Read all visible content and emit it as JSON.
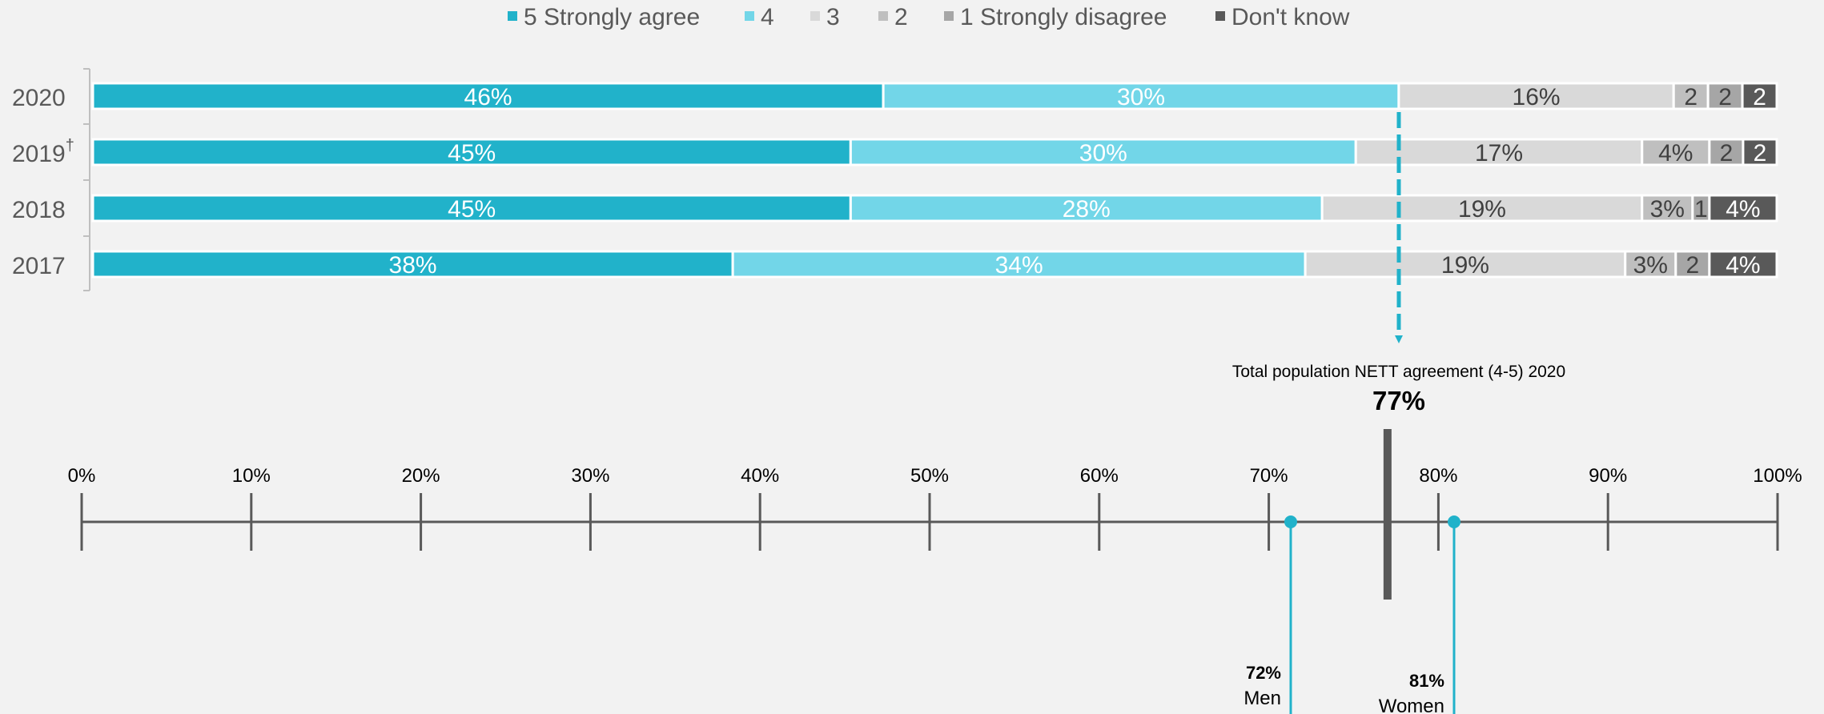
{
  "chart_data": [
    {
      "type": "bar",
      "orientation": "horizontal",
      "stacked": true,
      "title": "",
      "legend_position": "top",
      "legend": [
        "5 Strongly agree",
        "4",
        "3",
        "2",
        "1 Strongly disagree",
        "Don't know"
      ],
      "colors": [
        "#21b2ca",
        "#72d6e8",
        "#d9d9d9",
        "#bfbfbf",
        "#a6a6a6",
        "#595959"
      ],
      "categories": [
        {
          "year": "2020",
          "note": ""
        },
        {
          "year": "2019",
          "note": "†"
        },
        {
          "year": "2018",
          "note": ""
        },
        {
          "year": "2017",
          "note": ""
        }
      ],
      "series": [
        {
          "name": "5 Strongly agree",
          "values": [
            46,
            45,
            45,
            38
          ],
          "labels": [
            "46%",
            "45%",
            "45%",
            "38%"
          ]
        },
        {
          "name": "4",
          "values": [
            30,
            30,
            28,
            34
          ],
          "labels": [
            "30%",
            "30%",
            "28%",
            "34%"
          ]
        },
        {
          "name": "3",
          "values": [
            16,
            17,
            19,
            19
          ],
          "labels": [
            "16%",
            "17%",
            "19%",
            "19%"
          ]
        },
        {
          "name": "2",
          "values": [
            2,
            4,
            3,
            3
          ],
          "labels": [
            "2",
            "4%",
            "3%",
            "3%"
          ]
        },
        {
          "name": "1 Strongly disagree",
          "values": [
            2,
            2,
            1,
            2
          ],
          "labels": [
            "2",
            "2",
            "1",
            "2"
          ]
        },
        {
          "name": "Don't know",
          "values": [
            2,
            2,
            4,
            4
          ],
          "labels": [
            "2",
            "2",
            "4%",
            "4%"
          ]
        }
      ],
      "xlim": [
        0,
        100
      ]
    },
    {
      "type": "scatter",
      "axis_ticks": [
        "0%",
        "10%",
        "20%",
        "30%",
        "40%",
        "50%",
        "60%",
        "70%",
        "80%",
        "90%",
        "100%"
      ],
      "xlim": [
        0,
        100
      ],
      "total": {
        "title": "Total population NETT agreement (4-5)  2020",
        "value": 77,
        "label": "77%"
      },
      "groups": [
        {
          "name": "Men",
          "value": 72,
          "label": "72%"
        },
        {
          "name": "Women",
          "value": 81,
          "label": "81%"
        }
      ]
    }
  ]
}
